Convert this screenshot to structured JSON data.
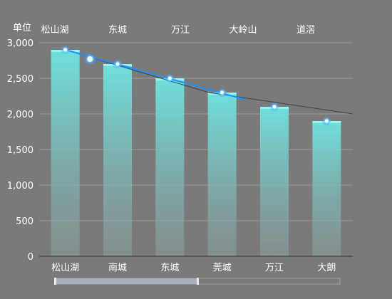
{
  "chart_data": {
    "type": "bar",
    "ylabel": "单位",
    "ylim": [
      0,
      3000
    ],
    "yticks": [
      {
        "value": 0,
        "label": "0"
      },
      {
        "value": 500,
        "label": "500"
      },
      {
        "value": 1000,
        "label": "1,000"
      },
      {
        "value": 1500,
        "label": "1,500"
      },
      {
        "value": 2000,
        "label": "2,000"
      },
      {
        "value": 2500,
        "label": "2,500"
      },
      {
        "value": 3000,
        "label": "3,000"
      }
    ],
    "categories": [
      "松山湖",
      "南城",
      "东城",
      "莞城",
      "万江",
      "大朗"
    ],
    "top_categories": [
      "松山湖",
      "东城",
      "万江",
      "大岭山",
      "道滘"
    ],
    "values": [
      2900,
      2700,
      2500,
      2300,
      2100,
      1900
    ],
    "trend_line": {
      "from": {
        "x": "松山湖",
        "y": 2900
      },
      "to": {
        "x": "莞城",
        "y": 2200
      }
    },
    "thin_line": [
      2900,
      2700,
      2500,
      2300,
      2200,
      2100,
      2000
    ],
    "grid": true,
    "colors": {
      "background": "#7a7a7a",
      "bar_top": "#6fe0dc",
      "bar_bottom": "#8a9e9e",
      "bar_cap": "#8ff6f2",
      "trend": "#1e90ff",
      "thin_line": "#3a4450",
      "grid": "#9a9a9a",
      "text": "#ffffff"
    },
    "scrollbar": {
      "position": 0.0,
      "visible_fraction": 0.5
    }
  }
}
